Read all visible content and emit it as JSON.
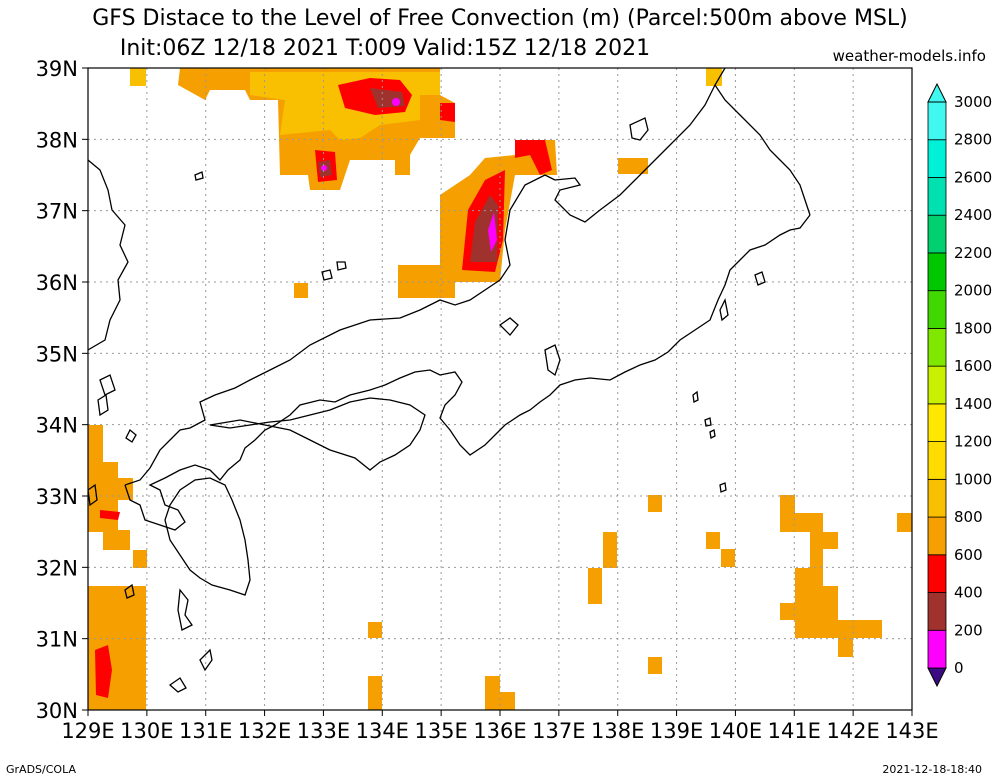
{
  "title_line1": "GFS Distace to the Level of Free Convection (m) (Parcel:500m above MSL)",
  "title_line2": "Init:06Z 12/18 2021 T:009 Valid:15Z 12/18 2021",
  "site": "weather-models.info",
  "footer_left": "GrADS/COLA",
  "footer_right": "2021-12-18-18:40",
  "lat_labels": [
    "39N",
    "38N",
    "37N",
    "36N",
    "35N",
    "34N",
    "33N",
    "32N",
    "31N",
    "30N"
  ],
  "lon_labels": [
    "129E",
    "130E",
    "131E",
    "132E",
    "133E",
    "134E",
    "135E",
    "136E",
    "137E",
    "138E",
    "139E",
    "140E",
    "141E",
    "142E",
    "143E"
  ],
  "colorbar": {
    "levels": [
      "0",
      "200",
      "400",
      "600",
      "800",
      "1000",
      "1200",
      "1400",
      "1600",
      "1800",
      "2000",
      "2200",
      "2400",
      "2600",
      "2800",
      "3000"
    ],
    "colors": [
      "#3c0a82",
      "#ff00ff",
      "#a0322d",
      "#ff0000",
      "#f5a000",
      "#f8c000",
      "#ffdc00",
      "#ffe800",
      "#c8f000",
      "#80e800",
      "#40d800",
      "#00c800",
      "#00d070",
      "#00e0b0",
      "#00f0d8",
      "#40f8f0"
    ]
  },
  "colors": {
    "orange": "#f5a000",
    "gold": "#f8c000",
    "red": "#ff0000",
    "brown": "#a0322d",
    "magenta": "#ff00ff",
    "purple": "#6a2a90"
  }
}
